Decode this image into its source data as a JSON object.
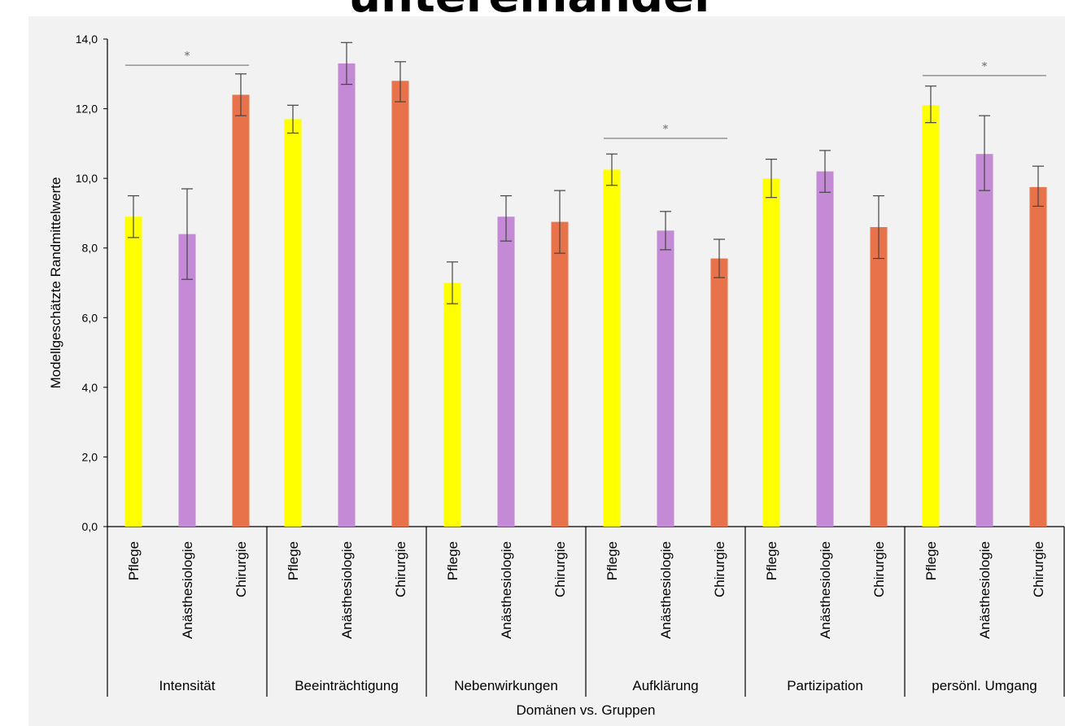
{
  "chart_data": {
    "type": "bar",
    "title": "untereinander",
    "xlabel": "Domänen vs. Gruppen",
    "ylabel": "Modellgeschätzte Randmittelwerte",
    "ylim": [
      0,
      14
    ],
    "yticks": [
      "0,0",
      "2,0",
      "4,0",
      "6,0",
      "8,0",
      "10,0",
      "12,0",
      "14,0"
    ],
    "ytick_values": [
      0,
      2,
      4,
      6,
      8,
      10,
      12,
      14
    ],
    "grid": false,
    "legend": "none",
    "colors": {
      "Pflege": "#ffff00",
      "Anästhesiologie": "#c48ad6",
      "Chirurgie": "#e8734a"
    },
    "groups": [
      {
        "name": "Intensität",
        "bars": [
          {
            "category": "Pflege",
            "value": 8.9,
            "err_low": 8.3,
            "err_high": 9.5
          },
          {
            "category": "Anästhesiologie",
            "value": 8.4,
            "err_low": 7.1,
            "err_high": 9.7
          },
          {
            "category": "Chirurgie",
            "value": 12.4,
            "err_low": 11.8,
            "err_high": 13.0
          }
        ],
        "significance": {
          "from": 0,
          "to": 2,
          "level": 13.25,
          "label": "*"
        }
      },
      {
        "name": "Beeinträchtigung",
        "bars": [
          {
            "category": "Pflege",
            "value": 11.7,
            "err_low": 11.3,
            "err_high": 12.1
          },
          {
            "category": "Anästhesiologie",
            "value": 13.3,
            "err_low": 12.7,
            "err_high": 13.9
          },
          {
            "category": "Chirurgie",
            "value": 12.8,
            "err_low": 12.2,
            "err_high": 13.35
          }
        ]
      },
      {
        "name": "Nebenwirkungen",
        "bars": [
          {
            "category": "Pflege",
            "value": 7.0,
            "err_low": 6.4,
            "err_high": 7.6
          },
          {
            "category": "Anästhesiologie",
            "value": 8.9,
            "err_low": 8.2,
            "err_high": 9.5
          },
          {
            "category": "Chirurgie",
            "value": 8.75,
            "err_low": 7.85,
            "err_high": 9.65
          }
        ]
      },
      {
        "name": "Aufklärung",
        "bars": [
          {
            "category": "Pflege",
            "value": 10.25,
            "err_low": 9.8,
            "err_high": 10.7
          },
          {
            "category": "Anästhesiologie",
            "value": 8.5,
            "err_low": 7.95,
            "err_high": 9.05
          },
          {
            "category": "Chirurgie",
            "value": 7.7,
            "err_low": 7.15,
            "err_high": 8.25
          }
        ],
        "significance": {
          "from": 0,
          "to": 2,
          "level": 11.15,
          "label": "*"
        }
      },
      {
        "name": "Partizipation",
        "bars": [
          {
            "category": "Pflege",
            "value": 10.0,
            "err_low": 9.45,
            "err_high": 10.55
          },
          {
            "category": "Anästhesiologie",
            "value": 10.2,
            "err_low": 9.6,
            "err_high": 10.8
          },
          {
            "category": "Chirurgie",
            "value": 8.6,
            "err_low": 7.7,
            "err_high": 9.5
          }
        ]
      },
      {
        "name": "persönl. Umgang",
        "bars": [
          {
            "category": "Pflege",
            "value": 12.1,
            "err_low": 11.6,
            "err_high": 12.65
          },
          {
            "category": "Anästhesiologie",
            "value": 10.7,
            "err_low": 9.65,
            "err_high": 11.8
          },
          {
            "category": "Chirurgie",
            "value": 9.75,
            "err_low": 9.2,
            "err_high": 10.35
          }
        ],
        "significance": {
          "from": 0,
          "to": 2,
          "level": 12.95,
          "label": "*"
        }
      }
    ]
  }
}
